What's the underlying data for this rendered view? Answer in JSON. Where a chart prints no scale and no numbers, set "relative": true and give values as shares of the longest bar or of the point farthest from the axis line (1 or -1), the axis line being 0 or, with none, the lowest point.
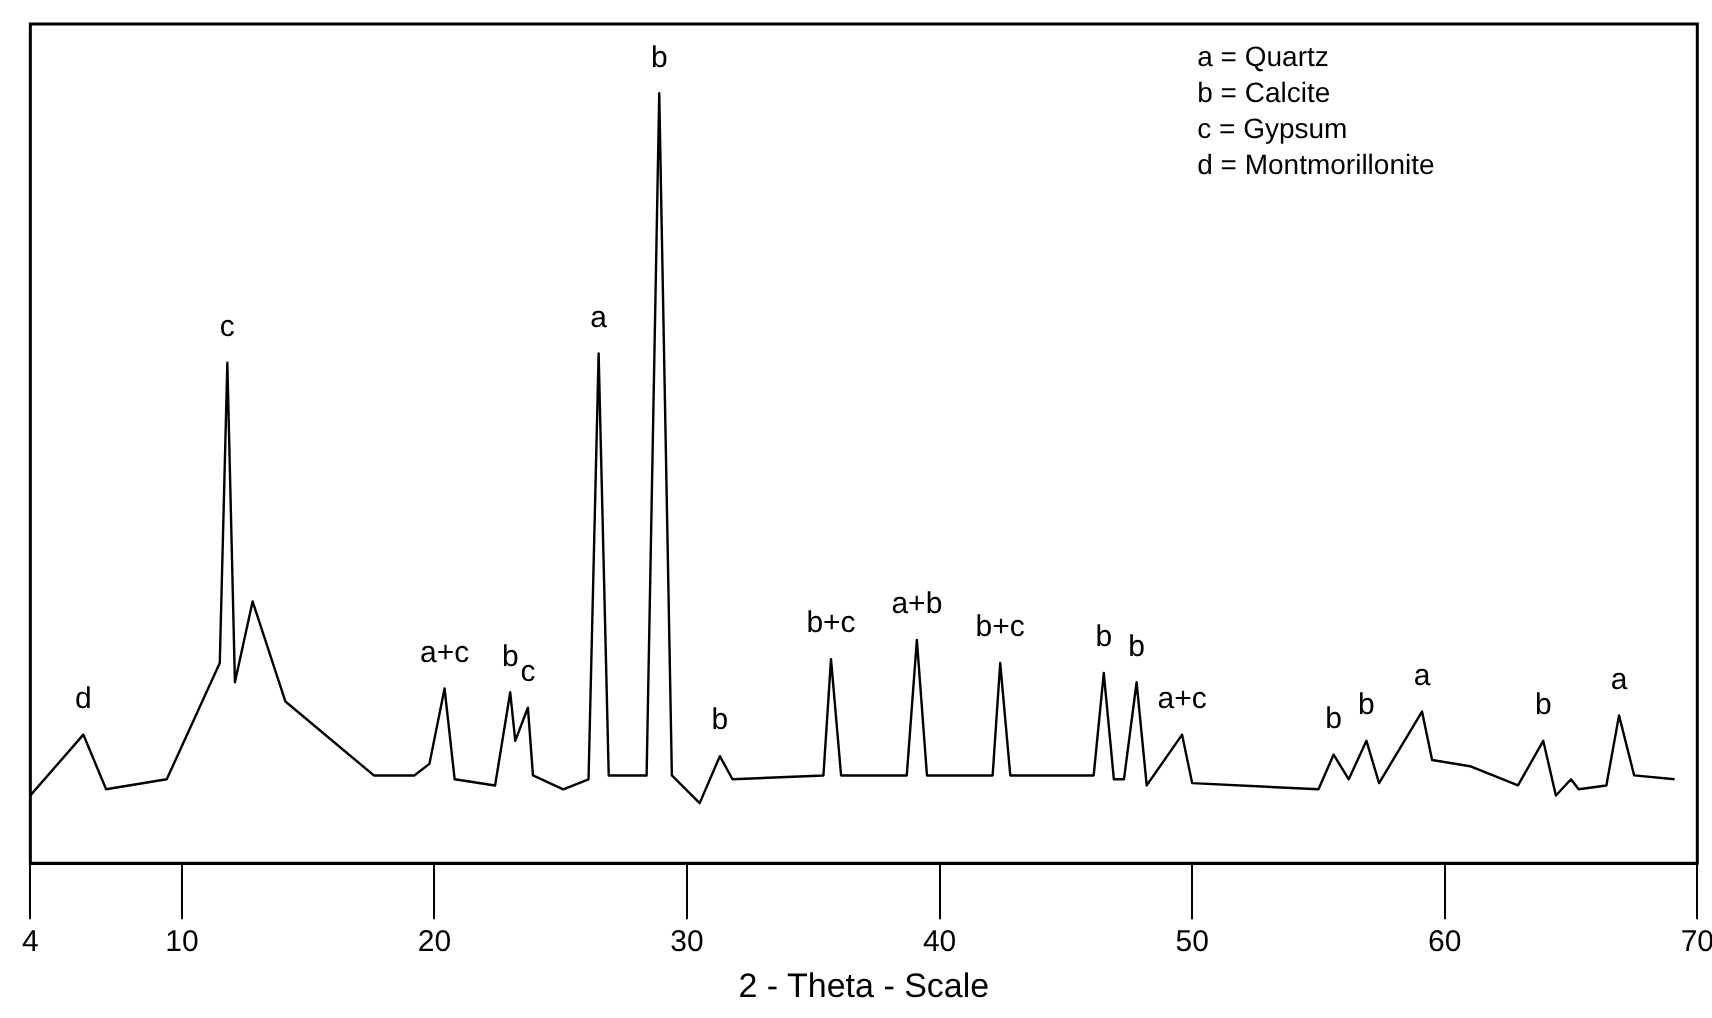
{
  "chart_data": {
    "type": "line",
    "relative": true,
    "xlabel": "2 - Theta - Scale",
    "color": "#000000",
    "xlim": [
      4,
      70
    ],
    "xticks": [
      4,
      10,
      20,
      30,
      40,
      50,
      60,
      70
    ],
    "tick_labels": "x",
    "grid": false,
    "legend": false,
    "marker": "none",
    "line_style": "solid",
    "x": [
      4.0,
      6.1,
      7.0,
      9.4,
      11.5,
      11.8,
      12.1,
      12.8,
      14.1,
      17.6,
      19.2,
      19.8,
      20.4,
      20.8,
      22.4,
      23.0,
      23.2,
      23.7,
      23.9,
      25.1,
      26.1,
      26.5,
      26.9,
      28.4,
      28.9,
      29.4,
      30.5,
      31.3,
      31.8,
      35.4,
      35.7,
      36.1,
      38.7,
      39.1,
      39.5,
      42.1,
      42.4,
      42.8,
      46.1,
      46.5,
      46.9,
      47.3,
      47.8,
      48.2,
      49.6,
      50.0,
      55.0,
      55.6,
      56.2,
      56.9,
      57.4,
      59.1,
      59.5,
      61.0,
      62.9,
      63.9,
      64.4,
      65.0,
      65.3,
      66.4,
      66.9,
      67.5,
      69.1
    ],
    "values": [
      0.088,
      0.167,
      0.096,
      0.109,
      0.26,
      0.65,
      0.235,
      0.34,
      0.21,
      0.114,
      0.114,
      0.129,
      0.227,
      0.109,
      0.101,
      0.222,
      0.159,
      0.202,
      0.114,
      0.096,
      0.109,
      0.662,
      0.114,
      0.114,
      1.0,
      0.114,
      0.078,
      0.139,
      0.109,
      0.114,
      0.265,
      0.114,
      0.114,
      0.29,
      0.114,
      0.114,
      0.26,
      0.114,
      0.114,
      0.247,
      0.109,
      0.109,
      0.235,
      0.101,
      0.167,
      0.104,
      0.096,
      0.141,
      0.109,
      0.159,
      0.104,
      0.197,
      0.134,
      0.126,
      0.101,
      0.159,
      0.088,
      0.109,
      0.096,
      0.101,
      0.192,
      0.114,
      0.109
    ],
    "annotations": [
      "a = Quartz",
      "b = Calcite",
      "c = Gypsum",
      "d = Montmorillonite",
      {
        "text": "d",
        "x": 6.1,
        "y": 0.167
      },
      {
        "text": "c",
        "x": 11.8,
        "y": 0.65
      },
      {
        "text": "a+c",
        "x": 20.4,
        "y": 0.227
      },
      {
        "text": "b",
        "x": 23.0,
        "y": 0.222
      },
      {
        "text": "c",
        "x": 23.7,
        "y": 0.202
      },
      {
        "text": "a",
        "x": 26.5,
        "y": 0.662
      },
      {
        "text": "b",
        "x": 28.9,
        "y": 1.0
      },
      {
        "text": "b",
        "x": 31.3,
        "y": 0.139
      },
      {
        "text": "b+c",
        "x": 35.7,
        "y": 0.265
      },
      {
        "text": "a+b",
        "x": 39.1,
        "y": 0.29
      },
      {
        "text": "b+c",
        "x": 42.4,
        "y": 0.26
      },
      {
        "text": "b",
        "x": 46.5,
        "y": 0.247
      },
      {
        "text": "b",
        "x": 47.8,
        "y": 0.235
      },
      {
        "text": "a+c",
        "x": 49.6,
        "y": 0.167
      },
      {
        "text": "b",
        "x": 55.6,
        "y": 0.141
      },
      {
        "text": "b",
        "x": 56.9,
        "y": 0.159
      },
      {
        "text": "a",
        "x": 59.1,
        "y": 0.197
      },
      {
        "text": "b",
        "x": 63.9,
        "y": 0.159
      },
      {
        "text": "a",
        "x": 66.9,
        "y": 0.192
      }
    ]
  }
}
